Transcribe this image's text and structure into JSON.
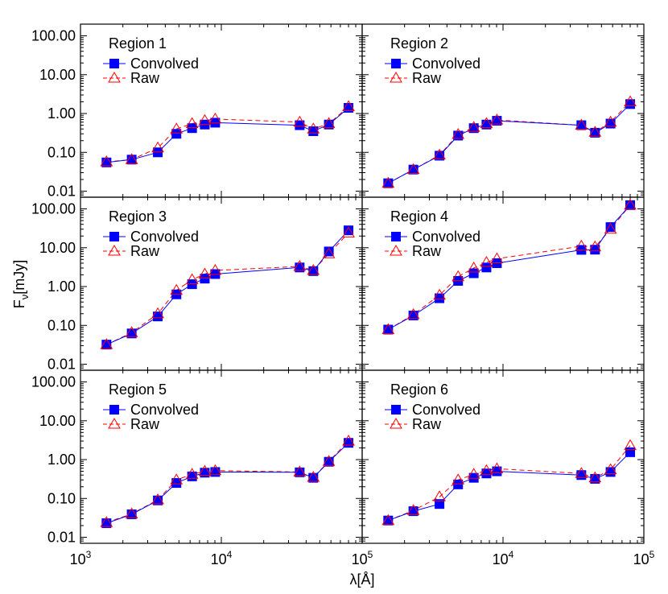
{
  "chart_data": {
    "type": "line",
    "layout": "3x2 grid of log-log panels",
    "xlabel": "λ[Å]",
    "ylabel": "F",
    "ylabel_sub": "ν",
    "ylabel_unit": "[mJy]",
    "xscale": "log",
    "yscale": "log",
    "xlim": [
      1000,
      100000
    ],
    "ylim": [
      0.007,
      200
    ],
    "xtick_values": [
      1000,
      10000,
      100000
    ],
    "xtick_bases": [
      "10",
      "10",
      "10"
    ],
    "xtick_exps": [
      "3",
      "4",
      "5"
    ],
    "ytick_values": [
      0.01,
      0.1,
      1,
      10,
      100
    ],
    "ytick_labels": [
      "0.01",
      "0.10",
      "1.00",
      "10.00",
      "100.00"
    ],
    "legend_placement": "top-left",
    "legend": [
      {
        "label": "Convolved",
        "marker": "filled-square",
        "line": "solid",
        "color": "#0000ff"
      },
      {
        "label": "Raw",
        "marker": "open-triangle",
        "line": "dashed",
        "color": "#ff0000"
      }
    ],
    "x": [
      1530,
      2310,
      3540,
      4800,
      6200,
      7630,
      9050,
      36000,
      45000,
      58000,
      80000
    ],
    "panels": [
      {
        "title": "Region 1",
        "convolved": [
          0.055,
          0.065,
          0.1,
          0.3,
          0.42,
          0.52,
          0.58,
          0.5,
          0.35,
          0.52,
          1.4
        ],
        "raw": [
          0.057,
          0.065,
          0.13,
          0.4,
          0.55,
          0.66,
          0.72,
          0.6,
          0.4,
          0.55,
          1.5
        ]
      },
      {
        "title": "Region 2",
        "convolved": [
          0.016,
          0.036,
          0.082,
          0.27,
          0.42,
          0.52,
          0.65,
          0.5,
          0.32,
          0.55,
          1.75
        ],
        "raw": [
          0.016,
          0.036,
          0.085,
          0.29,
          0.44,
          0.55,
          0.68,
          0.5,
          0.33,
          0.6,
          2.0
        ]
      },
      {
        "title": "Region 3",
        "convolved": [
          0.032,
          0.062,
          0.17,
          0.63,
          1.15,
          1.6,
          2.1,
          3.1,
          2.5,
          8.0,
          28.0
        ],
        "raw": [
          0.032,
          0.065,
          0.2,
          0.8,
          1.5,
          2.1,
          2.6,
          3.3,
          2.6,
          7.0,
          24.0
        ]
      },
      {
        "title": "Region 4",
        "convolved": [
          0.078,
          0.18,
          0.5,
          1.4,
          2.2,
          3.1,
          4.0,
          8.8,
          8.9,
          34.0,
          125.0
        ],
        "raw": [
          0.078,
          0.19,
          0.6,
          1.8,
          3.0,
          4.2,
          5.2,
          11.0,
          10.5,
          30.0,
          125.0
        ]
      },
      {
        "title": "Region 5",
        "convolved": [
          0.023,
          0.039,
          0.089,
          0.25,
          0.37,
          0.46,
          0.48,
          0.47,
          0.34,
          0.88,
          2.7
        ],
        "raw": [
          0.024,
          0.04,
          0.092,
          0.3,
          0.42,
          0.5,
          0.52,
          0.48,
          0.35,
          0.9,
          3.0
        ]
      },
      {
        "title": "Region 6",
        "convolved": [
          0.027,
          0.047,
          0.072,
          0.23,
          0.34,
          0.44,
          0.5,
          0.4,
          0.32,
          0.48,
          1.55
        ],
        "raw": [
          0.027,
          0.049,
          0.11,
          0.3,
          0.42,
          0.52,
          0.58,
          0.44,
          0.34,
          0.55,
          2.3
        ]
      }
    ]
  }
}
